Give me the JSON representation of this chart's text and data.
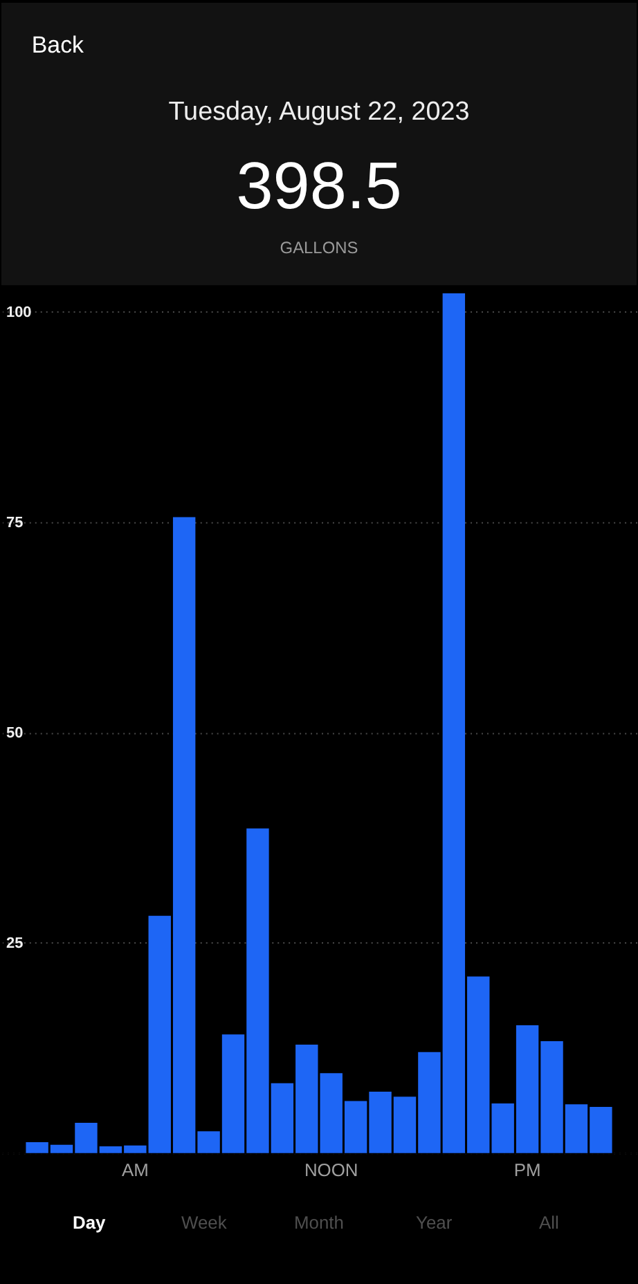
{
  "chart_data": {
    "type": "bar",
    "title": "Tuesday, August 22, 2023",
    "subtitle": "398.5",
    "annotations": [
      "Back",
      "GALLONS",
      "Day",
      "Week",
      "Month",
      "Year",
      "All"
    ],
    "categories": [
      null,
      null,
      null,
      null,
      "AM",
      null,
      null,
      null,
      null,
      null,
      null,
      null,
      "NOON",
      null,
      null,
      null,
      null,
      null,
      null,
      null,
      "PM",
      null,
      null,
      null
    ],
    "values": [
      1.3,
      1.0,
      3.6,
      0.8,
      0.9,
      28.2,
      75.6,
      2.6,
      14.1,
      38.6,
      8.3,
      12.9,
      9.5,
      6.2,
      7.3,
      6.7,
      12.0,
      102.2,
      21.0,
      5.9,
      15.2,
      13.3,
      5.8,
      5.5
    ],
    "color": "#1e66f5",
    "ylim": [
      0,
      103
    ],
    "yticks": [
      {
        "value": 0,
        "label": null
      },
      25,
      50,
      75,
      100
    ],
    "grid": "y"
  }
}
